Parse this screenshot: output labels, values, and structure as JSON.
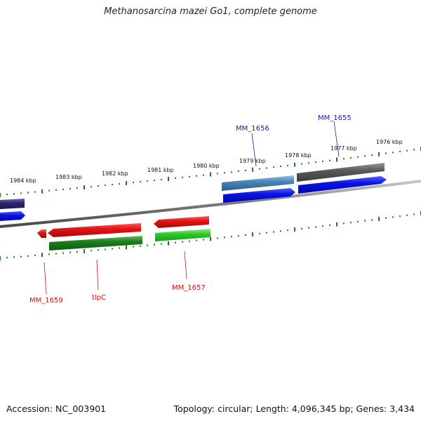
{
  "title": "Methanosarcina mazei Go1, complete genome",
  "footer": {
    "accession": "Accession: NC_003901",
    "summary": "Topology: circular; Length: 4,096,345 bp; Genes: 3,434"
  },
  "colors": {
    "backbone": "#8a8a8a",
    "ticks": "#1f7a1f",
    "label_forward": "#1a1aa0",
    "label_reverse": "#cc1111",
    "cds_forward": "#0a14e6",
    "cds_reverse": "#e61414",
    "gene_forward_dark": "#2d2a6e",
    "gene_forward_steel": "#4a86b8",
    "gene_forward_gray": "#5a5a5a",
    "gene_reverse_green_dark": "#1e7d1e",
    "gene_reverse_green": "#2ecc2e"
  },
  "ticks": [
    {
      "label": "1984 kbp"
    },
    {
      "label": "1983 kbp"
    },
    {
      "label": "1982 kbp"
    },
    {
      "label": "1981 kbp"
    },
    {
      "label": "1980 kbp"
    },
    {
      "label": "1979 kbp"
    },
    {
      "label": "1978 kbp"
    },
    {
      "label": "1977 kbp"
    },
    {
      "label": "1976 kbp"
    }
  ],
  "gene_labels": {
    "mm1655": "MM_1655",
    "mm1656": "MM_1656",
    "mm1657": "MM_1657",
    "tlpc": "tlpC",
    "mm1659": "MM_1659"
  }
}
